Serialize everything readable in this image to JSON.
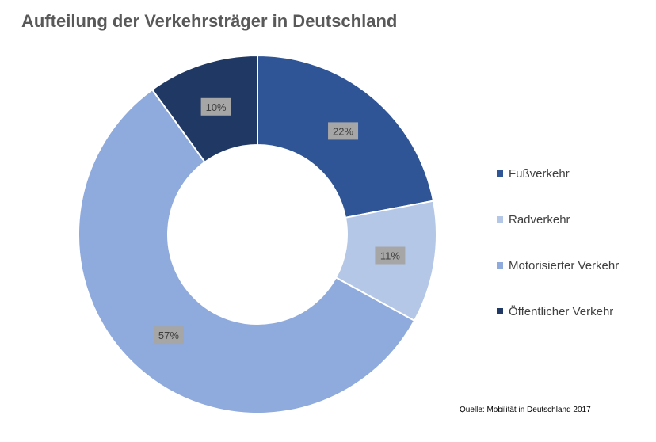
{
  "chart_data": {
    "type": "pie",
    "subtype": "donut",
    "title": "Aufteilung der Verkehrsträger in Deutschland",
    "categories": [
      "Fußverkehr",
      "Radverkehr",
      "Motorisierter Verkehr",
      "Öffentlicher Verkehr"
    ],
    "values": [
      22,
      11,
      57,
      10
    ],
    "data_labels": [
      "22%",
      "11%",
      "57%",
      "10%"
    ],
    "colors": [
      "#2f5597",
      "#b4c7e7",
      "#8faadc",
      "#203864"
    ],
    "legend_position": "right",
    "label_background": "#a6a6a6"
  },
  "source": "Quelle: Mobilität in Deutschland 2017"
}
